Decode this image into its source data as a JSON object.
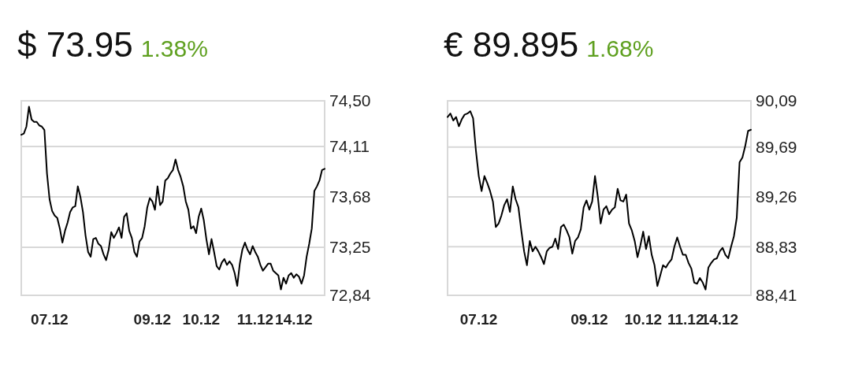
{
  "chart_data": [
    {
      "type": "line",
      "title": "$ 73.95",
      "subtitle": "1.38%",
      "ylim": [
        72.84,
        74.5
      ],
      "categories": [
        null,
        null,
        null,
        null,
        null,
        null,
        null,
        null,
        null,
        null,
        null,
        "07.12",
        null,
        null,
        null,
        null,
        null,
        null,
        null,
        null,
        null,
        null,
        null,
        null,
        null,
        null,
        null,
        null,
        null,
        null,
        null,
        null,
        null,
        null,
        null,
        null,
        null,
        null,
        null,
        null,
        null,
        null,
        null,
        null,
        null,
        null,
        null,
        null,
        null,
        null,
        null,
        "09.12",
        null,
        null,
        null,
        null,
        null,
        null,
        null,
        null,
        null,
        null,
        null,
        null,
        null,
        null,
        null,
        null,
        null,
        null,
        "10.12",
        null,
        null,
        null,
        null,
        null,
        null,
        null,
        null,
        null,
        null,
        null,
        null,
        null,
        null,
        null,
        null,
        null,
        null,
        null,
        null,
        "11.12",
        null,
        null,
        null,
        null,
        null,
        null,
        null,
        null,
        null,
        null,
        null,
        null,
        null,
        null,
        "14.12",
        null,
        null,
        null,
        null,
        null,
        null,
        null,
        null,
        null,
        null,
        null,
        null
      ],
      "yticks": [
        {
          "value": 72.84,
          "label": "72,84"
        },
        {
          "value": 73.25,
          "label": "73,25"
        },
        {
          "value": 73.68,
          "label": "73,68"
        },
        {
          "value": 74.11,
          "label": "74,11"
        },
        {
          "value": 74.5,
          "label": "74,50"
        }
      ],
      "grid": "y",
      "series": [
        {
          "color": "#000000",
          "values": [
            74.21,
            74.22,
            74.28,
            74.45,
            74.34,
            74.32,
            74.32,
            74.29,
            74.28,
            74.25,
            73.88,
            73.66,
            73.56,
            73.52,
            73.5,
            73.41,
            73.29,
            73.39,
            73.46,
            73.55,
            73.59,
            73.6,
            73.77,
            73.68,
            73.55,
            73.35,
            73.21,
            73.17,
            73.32,
            73.33,
            73.28,
            73.26,
            73.19,
            73.14,
            73.23,
            73.38,
            73.33,
            73.37,
            73.42,
            73.33,
            73.51,
            73.54,
            73.39,
            73.33,
            73.21,
            73.17,
            73.3,
            73.33,
            73.43,
            73.59,
            73.67,
            73.64,
            73.57,
            73.77,
            73.61,
            73.64,
            73.82,
            73.84,
            73.88,
            73.91,
            74.0,
            73.91,
            73.85,
            73.77,
            73.64,
            73.57,
            73.41,
            73.43,
            73.37,
            73.51,
            73.58,
            73.48,
            73.32,
            73.19,
            73.32,
            73.21,
            73.09,
            73.06,
            73.12,
            73.15,
            73.1,
            73.13,
            73.1,
            73.03,
            72.92,
            73.11,
            73.23,
            73.29,
            73.23,
            73.19,
            73.26,
            73.21,
            73.17,
            73.1,
            73.05,
            73.08,
            73.11,
            73.11,
            73.05,
            73.03,
            73.01,
            72.89,
            72.99,
            72.94,
            73.01,
            73.03,
            72.99,
            73.02,
            73.0,
            72.94,
            73.01,
            73.17,
            73.28,
            73.41,
            73.73,
            73.77,
            73.82,
            73.91,
            73.92
          ]
        }
      ]
    },
    {
      "type": "line",
      "title": "€ 89.895",
      "subtitle": "1.68%",
      "ylim": [
        88.41,
        90.09
      ],
      "categories": [
        null,
        null,
        null,
        null,
        null,
        null,
        null,
        null,
        null,
        null,
        null,
        "07.12",
        null,
        null,
        null,
        null,
        null,
        null,
        null,
        null,
        null,
        null,
        null,
        null,
        null,
        null,
        null,
        null,
        null,
        null,
        null,
        null,
        null,
        null,
        null,
        null,
        null,
        null,
        null,
        null,
        null,
        null,
        null,
        null,
        null,
        null,
        null,
        null,
        null,
        null,
        "09.12",
        null,
        null,
        null,
        null,
        null,
        null,
        null,
        null,
        null,
        null,
        null,
        null,
        null,
        null,
        null,
        null,
        null,
        null,
        "10.12",
        null,
        null,
        null,
        null,
        null,
        null,
        null,
        null,
        null,
        null,
        null,
        null,
        null,
        null,
        "11.12",
        null,
        null,
        null,
        null,
        null,
        null,
        null,
        null,
        null,
        null,
        null,
        "14.12",
        null,
        null,
        null,
        null,
        null,
        null,
        null,
        null,
        null,
        null,
        null
      ],
      "yticks": [
        {
          "value": 88.41,
          "label": "88,41"
        },
        {
          "value": 88.83,
          "label": "88,83"
        },
        {
          "value": 89.26,
          "label": "89,26"
        },
        {
          "value": 89.69,
          "label": "89,69"
        },
        {
          "value": 90.09,
          "label": "90,09"
        }
      ],
      "grid": "y",
      "series": [
        {
          "color": "#000000",
          "values": [
            89.95,
            89.98,
            89.92,
            89.95,
            89.87,
            89.93,
            89.97,
            89.98,
            90.0,
            89.94,
            89.66,
            89.44,
            89.31,
            89.44,
            89.38,
            89.31,
            89.22,
            89.0,
            89.03,
            89.1,
            89.19,
            89.24,
            89.13,
            89.35,
            89.24,
            89.17,
            88.97,
            88.79,
            88.67,
            88.88,
            88.79,
            88.83,
            88.79,
            88.74,
            88.68,
            88.79,
            88.82,
            88.83,
            88.9,
            88.81,
            89.0,
            89.02,
            88.97,
            88.91,
            88.77,
            88.88,
            88.91,
            88.98,
            89.17,
            89.23,
            89.15,
            89.22,
            89.44,
            89.26,
            89.03,
            89.15,
            89.18,
            89.11,
            89.15,
            89.17,
            89.33,
            89.23,
            89.22,
            89.28,
            89.03,
            88.97,
            88.88,
            88.74,
            88.84,
            88.96,
            88.81,
            88.92,
            88.76,
            88.67,
            88.49,
            88.58,
            88.67,
            88.65,
            88.69,
            88.72,
            88.83,
            88.91,
            88.83,
            88.76,
            88.76,
            88.69,
            88.64,
            88.52,
            88.51,
            88.56,
            88.52,
            88.46,
            88.65,
            88.69,
            88.72,
            88.73,
            88.79,
            88.82,
            88.76,
            88.73,
            88.83,
            88.92,
            89.08,
            89.56,
            89.6,
            89.7,
            89.83,
            89.84
          ]
        }
      ]
    }
  ]
}
